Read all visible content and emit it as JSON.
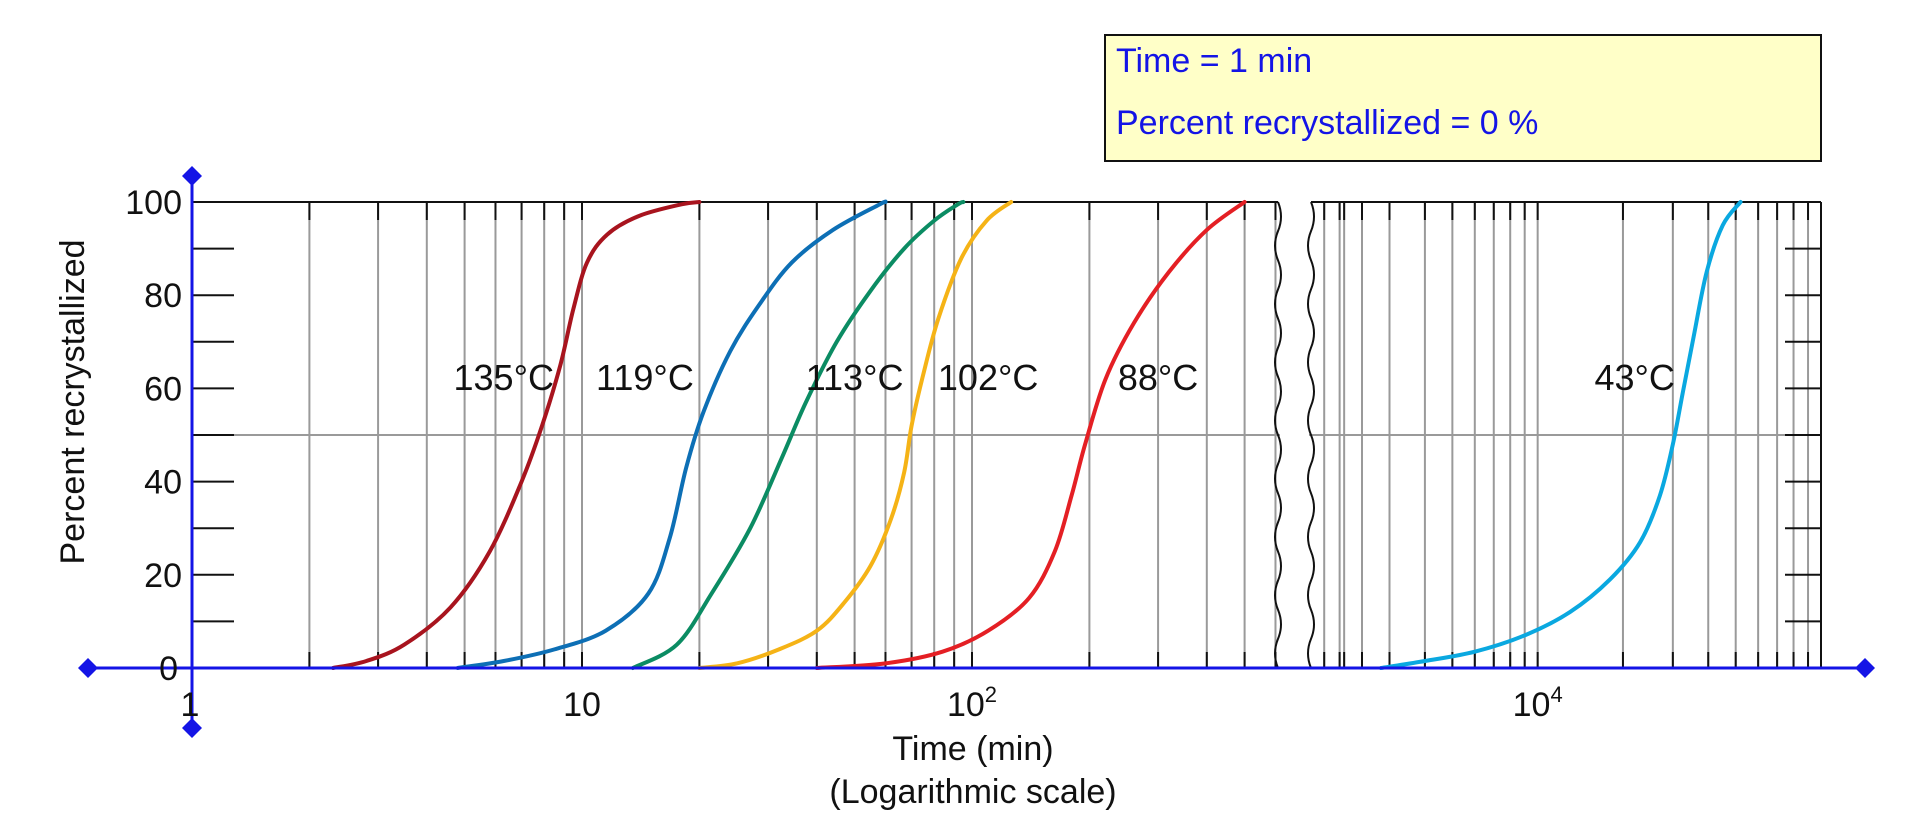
{
  "readout": {
    "time_label": "Time = ",
    "time_value": "1",
    "time_unit": " min",
    "percent_label": "Percent recrystallized = ",
    "percent_value": "0",
    "percent_unit": " %"
  },
  "chart_data": {
    "type": "line",
    "xscale": "log",
    "axis_break": "between 10^3 and 10^3.2 min",
    "x_range_left_segment": [
      1,
      1000
    ],
    "x_range_right_segment": [
      1585,
      100000
    ],
    "ylim": [
      0,
      100
    ],
    "xlabel": "Time (min)",
    "xlabel_sub": "(Logarithmic scale)",
    "ylabel": "Percent recrystallized",
    "y_ticks": [
      "0",
      "20",
      "40",
      "60",
      "80",
      "100"
    ],
    "x_tick_labels": [
      {
        "value": 1,
        "base": "1",
        "exp": ""
      },
      {
        "value": 10,
        "base": "10",
        "exp": ""
      },
      {
        "value": 100,
        "base": "10",
        "exp": "2"
      },
      {
        "value": 10000,
        "base": "10",
        "exp": "4"
      }
    ],
    "grid": true,
    "series": [
      {
        "name": "135°C",
        "color": "#a8141e",
        "label_value": 6.3,
        "points": [
          [
            2.3,
            0
          ],
          [
            2.8,
            1.5
          ],
          [
            3.5,
            5
          ],
          [
            4.6,
            13
          ],
          [
            5.8,
            25
          ],
          [
            7.0,
            40
          ],
          [
            7.9,
            52
          ],
          [
            8.8,
            65
          ],
          [
            9.5,
            77
          ],
          [
            10.3,
            87
          ],
          [
            11.6,
            93
          ],
          [
            14,
            97
          ],
          [
            18,
            99.5
          ],
          [
            20,
            100
          ]
        ]
      },
      {
        "name": "119°C",
        "color": "#0d6fb5",
        "label_value": 14.5,
        "points": [
          [
            4.8,
            0
          ],
          [
            6.3,
            1.5
          ],
          [
            8.5,
            4
          ],
          [
            11.5,
            8
          ],
          [
            14.8,
            16
          ],
          [
            16.8,
            28
          ],
          [
            18.5,
            43
          ],
          [
            20.5,
            55
          ],
          [
            24,
            68
          ],
          [
            28.5,
            78
          ],
          [
            34.5,
            87
          ],
          [
            44,
            94
          ],
          [
            58,
            99.5
          ],
          [
            60,
            100
          ]
        ]
      },
      {
        "name": "113°C",
        "color": "#0b8c63",
        "label_value": 50,
        "points": [
          [
            13.5,
            0
          ],
          [
            17.5,
            5
          ],
          [
            21.5,
            16
          ],
          [
            27,
            30
          ],
          [
            32.5,
            45
          ],
          [
            37.5,
            57
          ],
          [
            45,
            70
          ],
          [
            55,
            81
          ],
          [
            67,
            90
          ],
          [
            80,
            96
          ],
          [
            92,
            99.5
          ],
          [
            95,
            100
          ]
        ]
      },
      {
        "name": "102°C",
        "color": "#f5b316",
        "label_value": 110,
        "points": [
          [
            20,
            0
          ],
          [
            25,
            1
          ],
          [
            32,
            4
          ],
          [
            40,
            8
          ],
          [
            47,
            14
          ],
          [
            55,
            22
          ],
          [
            62,
            32
          ],
          [
            67,
            42
          ],
          [
            70,
            52
          ],
          [
            75,
            63
          ],
          [
            82,
            75
          ],
          [
            94,
            88
          ],
          [
            109,
            96
          ],
          [
            126,
            100
          ]
        ]
      },
      {
        "name": "88°C",
        "color": "#e41f24",
        "label_value": 300,
        "points": [
          [
            40,
            0
          ],
          [
            60,
            1
          ],
          [
            84,
            3.5
          ],
          [
            110,
            8
          ],
          [
            140,
            15
          ],
          [
            163,
            25
          ],
          [
            180,
            37
          ],
          [
            195,
            48
          ],
          [
            220,
            62
          ],
          [
            260,
            74
          ],
          [
            320,
            85
          ],
          [
            400,
            94
          ],
          [
            500,
            100
          ]
        ]
      },
      {
        "name": "43°C",
        "color": "#0aa8e0",
        "label_value": 22000,
        "points": [
          [
            2800,
            0
          ],
          [
            4000,
            1.5
          ],
          [
            6000,
            3.5
          ],
          [
            9000,
            7
          ],
          [
            13000,
            12
          ],
          [
            18000,
            19
          ],
          [
            23000,
            27
          ],
          [
            27000,
            37
          ],
          [
            30000,
            48
          ],
          [
            32500,
            59
          ],
          [
            35500,
            71
          ],
          [
            39500,
            85
          ],
          [
            45000,
            95
          ],
          [
            52000,
            100
          ]
        ]
      }
    ],
    "decorations": {
      "control_points": "blue diamond handles at axis ends",
      "axis_color": "#1414e6"
    }
  }
}
